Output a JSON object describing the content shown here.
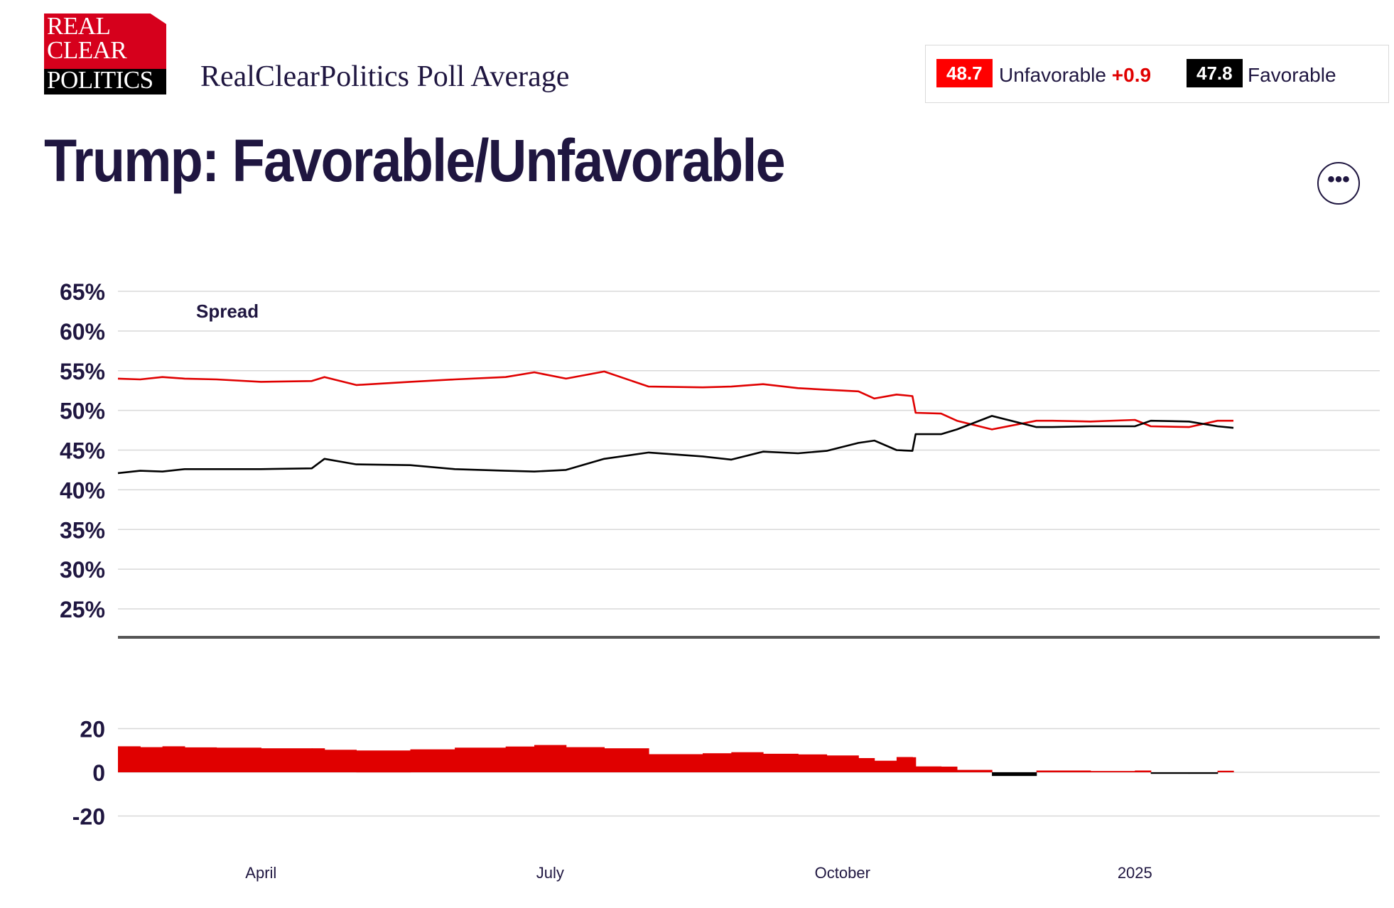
{
  "header": {
    "logo_lines": [
      "REAL",
      "CLEAR",
      "POLITICS"
    ],
    "subtitle": "RealClearPolitics Poll Average",
    "title": "Trump: Favorable/Unfavorable",
    "more_icon": "ellipsis-icon",
    "more_label": "•••"
  },
  "legend": {
    "unfavorable": {
      "value": "48.7",
      "label": "Unfavorable",
      "change": "+0.9",
      "color": "#e00000"
    },
    "favorable": {
      "value": "47.8",
      "label": "Favorable",
      "color": "#000000"
    }
  },
  "chart_data": [
    {
      "type": "line",
      "ylim": [
        20,
        65
      ],
      "yticks": [
        "65%",
        "60%",
        "55%",
        "50%",
        "45%",
        "40%",
        "35%",
        "30%",
        "25%"
      ],
      "xlabels": [
        "April",
        "July",
        "October",
        "2025"
      ],
      "grid": true,
      "annotation": "Spread",
      "series": [
        {
          "name": "Unfavorable",
          "color": "#e00000",
          "x": [
            "2024-03-01",
            "2024-03-08",
            "2024-03-15",
            "2024-03-22",
            "2024-04-01",
            "2024-04-15",
            "2024-05-01",
            "2024-05-05",
            "2024-05-15",
            "2024-06-01",
            "2024-06-15",
            "2024-07-01",
            "2024-07-10",
            "2024-07-20",
            "2024-08-01",
            "2024-08-15",
            "2024-09-01",
            "2024-09-10",
            "2024-09-20",
            "2024-10-01",
            "2024-10-10",
            "2024-10-20",
            "2024-10-25",
            "2024-11-01",
            "2024-11-06",
            "2024-11-07",
            "2024-11-15",
            "2024-11-20",
            "2024-12-01",
            "2024-12-15",
            "2024-12-20",
            "2025-01-01",
            "2025-01-15",
            "2025-01-20",
            "2025-02-01",
            "2025-02-10",
            "2025-02-15"
          ],
          "values": [
            54.0,
            53.9,
            54.2,
            54.0,
            53.9,
            53.6,
            53.7,
            54.2,
            53.2,
            53.6,
            53.9,
            54.2,
            54.8,
            54.0,
            54.9,
            53.0,
            52.9,
            53.0,
            53.3,
            52.8,
            52.6,
            52.4,
            51.5,
            52.0,
            51.8,
            49.7,
            49.6,
            48.7,
            47.6,
            48.7,
            48.7,
            48.6,
            48.8,
            48.0,
            47.9,
            48.7,
            48.7
          ]
        },
        {
          "name": "Favorable",
          "color": "#000000",
          "x": [
            "2024-03-01",
            "2024-03-08",
            "2024-03-15",
            "2024-03-22",
            "2024-04-01",
            "2024-04-15",
            "2024-05-01",
            "2024-05-05",
            "2024-05-15",
            "2024-06-01",
            "2024-06-15",
            "2024-07-01",
            "2024-07-10",
            "2024-07-20",
            "2024-08-01",
            "2024-08-15",
            "2024-09-01",
            "2024-09-10",
            "2024-09-20",
            "2024-10-01",
            "2024-10-10",
            "2024-10-20",
            "2024-10-25",
            "2024-11-01",
            "2024-11-06",
            "2024-11-07",
            "2024-11-15",
            "2024-11-20",
            "2024-12-01",
            "2024-12-15",
            "2024-12-20",
            "2025-01-01",
            "2025-01-15",
            "2025-01-20",
            "2025-02-01",
            "2025-02-10",
            "2025-02-15"
          ],
          "values": [
            42.1,
            42.4,
            42.3,
            42.6,
            42.6,
            42.6,
            42.7,
            43.9,
            43.2,
            43.1,
            42.6,
            42.4,
            42.3,
            42.5,
            43.9,
            44.7,
            44.2,
            43.8,
            44.8,
            44.6,
            44.9,
            45.9,
            46.2,
            45.0,
            44.9,
            47.0,
            47.0,
            47.6,
            49.3,
            47.9,
            47.9,
            48.0,
            48.0,
            48.7,
            48.6,
            48.0,
            47.8
          ]
        }
      ]
    },
    {
      "type": "bar",
      "ylim": [
        -20,
        20
      ],
      "yticks": [
        "20",
        "0",
        "-20"
      ],
      "series": [
        {
          "name": "Spread",
          "positive_color": "#e00000",
          "negative_color": "#000000",
          "x": [
            "2024-03-01",
            "2024-03-08",
            "2024-03-15",
            "2024-03-22",
            "2024-04-01",
            "2024-04-15",
            "2024-05-01",
            "2024-05-05",
            "2024-05-15",
            "2024-06-01",
            "2024-06-15",
            "2024-07-01",
            "2024-07-10",
            "2024-07-20",
            "2024-08-01",
            "2024-08-15",
            "2024-09-01",
            "2024-09-10",
            "2024-09-20",
            "2024-10-01",
            "2024-10-10",
            "2024-10-20",
            "2024-10-25",
            "2024-11-01",
            "2024-11-06",
            "2024-11-07",
            "2024-11-15",
            "2024-11-20",
            "2024-12-01",
            "2024-12-15",
            "2024-12-20",
            "2025-01-01",
            "2025-01-15",
            "2025-01-20",
            "2025-02-01",
            "2025-02-10",
            "2025-02-15"
          ],
          "values": [
            11.9,
            11.5,
            11.9,
            11.4,
            11.3,
            11.0,
            11.0,
            10.3,
            10.0,
            10.5,
            11.3,
            11.8,
            12.5,
            11.5,
            11.0,
            8.3,
            8.7,
            9.2,
            8.5,
            8.2,
            7.7,
            6.5,
            5.3,
            7.0,
            6.9,
            2.7,
            2.6,
            1.1,
            -1.7,
            0.8,
            0.8,
            0.6,
            0.8,
            -0.7,
            -0.7,
            0.7,
            0.9
          ]
        }
      ]
    }
  ]
}
